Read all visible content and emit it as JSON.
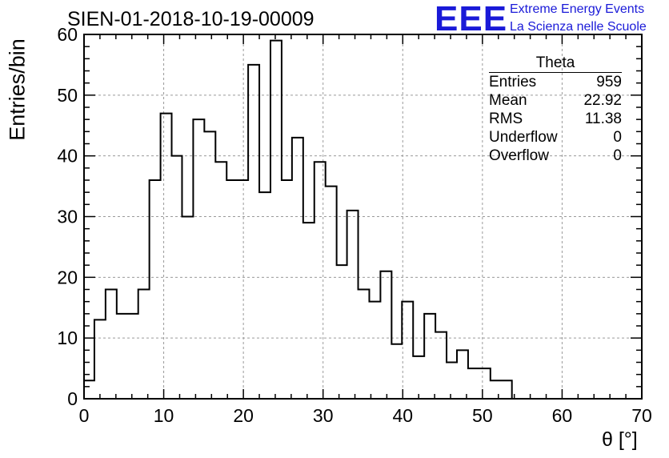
{
  "title": "SIEN-01-2018-10-19-00009",
  "logo": {
    "mark": "EEE",
    "line1": "Extreme Energy Events",
    "line2": "La Scienza nelle Scuole",
    "color": "#1a1ad8"
  },
  "stats": {
    "title": "Theta",
    "rows": [
      {
        "label": "Entries",
        "value": "959"
      },
      {
        "label": "Mean",
        "value": "22.92"
      },
      {
        "label": "RMS",
        "value": "11.38"
      },
      {
        "label": "Underflow",
        "value": "0"
      },
      {
        "label": "Overflow",
        "value": "0"
      }
    ]
  },
  "chart_data": {
    "type": "histogram",
    "title": "SIEN-01-2018-10-19-00009",
    "xlabel": "θ [°]",
    "ylabel": "Entries/bin",
    "xlim": [
      0,
      70
    ],
    "ylim": [
      0,
      60
    ],
    "xticks": [
      0,
      10,
      20,
      30,
      40,
      50,
      60,
      70
    ],
    "yticks": [
      0,
      10,
      20,
      30,
      40,
      50,
      60
    ],
    "grid": true,
    "bin_edges": [
      0,
      1.3,
      2.7,
      4.1,
      5.4,
      6.8,
      8.2,
      9.6,
      11.0,
      12.3,
      13.7,
      15.1,
      16.5,
      17.9,
      19.2,
      20.6,
      22.0,
      23.4,
      24.8,
      26.1,
      27.5,
      28.9,
      30.3,
      31.7,
      33.0,
      34.4,
      35.8,
      37.2,
      38.6,
      39.9,
      41.3,
      42.7,
      44.1,
      45.5,
      46.8,
      48.2,
      49.6,
      51.0,
      52.4,
      53.7,
      54.5
    ],
    "counts": [
      3,
      13,
      18,
      14,
      14,
      18,
      36,
      47,
      40,
      30,
      46,
      44,
      39,
      36,
      36,
      55,
      34,
      59,
      36,
      43,
      29,
      39,
      35,
      22,
      31,
      18,
      16,
      21,
      9,
      16,
      7,
      14,
      11,
      6,
      8,
      5,
      5,
      3,
      3,
      0
    ]
  }
}
